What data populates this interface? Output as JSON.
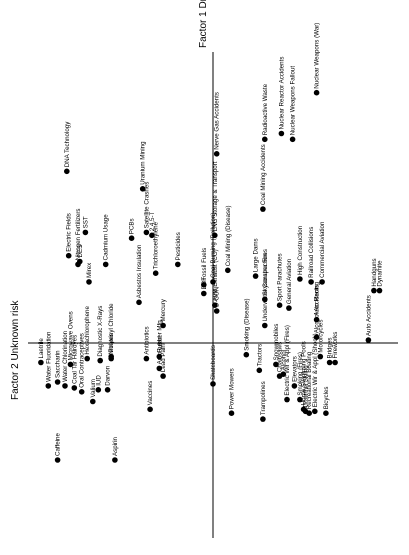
{
  "chart_data": {
    "type": "scatter",
    "xlabel": "Factor 1 Dread risk",
    "ylabel": "Factor 2 Unknown risk",
    "xlim": [
      -1,
      1
    ],
    "ylim": [
      -1,
      1
    ],
    "grid": false,
    "colors": {
      "points": "#000000",
      "axes": "#000000"
    },
    "points": [
      {
        "label": "Nuclear Weapons (War)",
        "x": 0.56,
        "y": 0.86
      },
      {
        "label": "Nuclear Reactor Accidents",
        "x": 0.37,
        "y": 0.72
      },
      {
        "label": "Nuclear Weapons Fallout",
        "x": 0.43,
        "y": 0.7
      },
      {
        "label": "Radioactive Waste",
        "x": 0.28,
        "y": 0.7
      },
      {
        "label": "Nerve Gas Accidents",
        "x": 0.02,
        "y": 0.65
      },
      {
        "label": "DNA Technology",
        "x": -0.79,
        "y": 0.59
      },
      {
        "label": "Uranium Mining",
        "x": -0.38,
        "y": 0.53
      },
      {
        "label": "Coal Mining Accidents",
        "x": 0.27,
        "y": 0.46
      },
      {
        "label": "Satellite Crashes",
        "x": -0.36,
        "y": 0.38
      },
      {
        "label": "SST",
        "x": -0.69,
        "y": 0.38
      },
      {
        "label": "2,4,5-T",
        "x": -0.33,
        "y": 0.37
      },
      {
        "label": "LNG Storage & Transport",
        "x": 0.01,
        "y": 0.37
      },
      {
        "label": "PCBs",
        "x": -0.44,
        "y": 0.36
      },
      {
        "label": "Electric Fields",
        "x": -0.78,
        "y": 0.3
      },
      {
        "label": "DES",
        "x": -0.72,
        "y": 0.28
      },
      {
        "label": "Nitrogen Fertilizers",
        "x": -0.73,
        "y": 0.27
      },
      {
        "label": "Pesticides",
        "x": -0.19,
        "y": 0.27
      },
      {
        "label": "Cadmium Usage",
        "x": -0.58,
        "y": 0.27
      },
      {
        "label": "Trichloroethylene",
        "x": -0.31,
        "y": 0.24
      },
      {
        "label": "Coal Mining (Disease)",
        "x": 0.08,
        "y": 0.25
      },
      {
        "label": "Large Dams",
        "x": 0.23,
        "y": 0.23
      },
      {
        "label": "High Construction",
        "x": 0.47,
        "y": 0.22
      },
      {
        "label": "Handguns",
        "x": 0.87,
        "y": 0.18
      },
      {
        "label": "Dynamite",
        "x": 0.9,
        "y": 0.18
      },
      {
        "label": "Mirex",
        "x": -0.67,
        "y": 0.21
      },
      {
        "label": "Fossil Fuels",
        "x": -0.05,
        "y": 0.2
      },
      {
        "label": "Coal Burning (Pollution)",
        "x": 0.0,
        "y": 0.21
      },
      {
        "label": "Railroad Collisions",
        "x": 0.53,
        "y": 0.21
      },
      {
        "label": "Commercial Aviation",
        "x": 0.59,
        "y": 0.21
      },
      {
        "label": "DDT",
        "x": -0.05,
        "y": 0.17
      },
      {
        "label": "Skyscraper Fires",
        "x": 0.28,
        "y": 0.15
      },
      {
        "label": "Asbestos Insulation",
        "x": -0.4,
        "y": 0.14
      },
      {
        "label": "Auto Exhaust (CO)",
        "x": 0.01,
        "y": 0.13
      },
      {
        "label": "Sport Parachutes",
        "x": 0.36,
        "y": 0.13
      },
      {
        "label": "General Aviation",
        "x": 0.41,
        "y": 0.12
      },
      {
        "label": "Auto Racing",
        "x": 0.56,
        "y": 0.08
      },
      {
        "label": "D-CON",
        "x": 0.02,
        "y": 0.11
      },
      {
        "label": "Mercury",
        "x": -0.27,
        "y": 0.06
      },
      {
        "label": "Underwater Construction",
        "x": 0.28,
        "y": 0.06
      },
      {
        "label": "Alcohol Accidents",
        "x": 0.56,
        "y": 0.02
      },
      {
        "label": "Auto Accidents",
        "x": 0.84,
        "y": 0.01
      },
      {
        "label": "Nitrates",
        "x": -0.55,
        "y": -0.08
      },
      {
        "label": "Hexachlorophene",
        "x": -0.68,
        "y": -0.08
      },
      {
        "label": "Polyvinyl Chloride",
        "x": -0.55,
        "y": -0.07
      },
      {
        "label": "Diagnostic X-Rays",
        "x": -0.61,
        "y": -0.09
      },
      {
        "label": "Antibiotics",
        "x": -0.36,
        "y": -0.08
      },
      {
        "label": "Rubber Mfg.",
        "x": -0.29,
        "y": -0.07
      },
      {
        "label": "Auto Lead",
        "x": -0.29,
        "y": -0.13
      },
      {
        "label": "Lead Paint",
        "x": -0.27,
        "y": -0.17
      },
      {
        "label": "Laetrile",
        "x": -0.93,
        "y": -0.1
      },
      {
        "label": "Microwave Ovens",
        "x": -0.77,
        "y": -0.11
      },
      {
        "label": "Saccharin",
        "x": -0.84,
        "y": -0.2
      },
      {
        "label": "Water Fluoridation",
        "x": -0.89,
        "y": -0.22
      },
      {
        "label": "Water Chlorination",
        "x": -0.8,
        "y": -0.22
      },
      {
        "label": "Coal Tar Hairdyes",
        "x": -0.75,
        "y": -0.23
      },
      {
        "label": "Oral Contraceptives",
        "x": -0.71,
        "y": -0.25
      },
      {
        "label": "IUD",
        "x": -0.62,
        "y": -0.24
      },
      {
        "label": "Darvon",
        "x": -0.57,
        "y": -0.24
      },
      {
        "label": "Valium",
        "x": -0.65,
        "y": -0.3
      },
      {
        "label": "Vaccines",
        "x": -0.34,
        "y": -0.34
      },
      {
        "label": "Caffeine",
        "x": -0.84,
        "y": -0.6
      },
      {
        "label": "Aspirin",
        "x": -0.53,
        "y": -0.6
      },
      {
        "label": "Smoking (Disease)",
        "x": 0.18,
        "y": -0.06
      },
      {
        "label": "Snowmobiles",
        "x": 0.34,
        "y": -0.11
      },
      {
        "label": "Tractors",
        "x": 0.25,
        "y": -0.14
      },
      {
        "label": "Alcohol",
        "x": 0.38,
        "y": -0.16
      },
      {
        "label": "Chainsaws",
        "x": 0.36,
        "y": -0.17
      },
      {
        "label": "Elevators",
        "x": 0.44,
        "y": -0.22
      },
      {
        "label": "Skateboards",
        "x": 0.0,
        "y": -0.21
      },
      {
        "label": "Electric Wir & Appl (Fires)",
        "x": 0.4,
        "y": -0.29
      },
      {
        "label": "Smoking (Fires)",
        "x": 0.47,
        "y": -0.29
      },
      {
        "label": "Motorcycles",
        "x": 0.58,
        "y": -0.07
      },
      {
        "label": "Bridges",
        "x": 0.63,
        "y": -0.1
      },
      {
        "label": "Fireworks",
        "x": 0.66,
        "y": -0.1
      },
      {
        "label": "Power Mowers",
        "x": 0.1,
        "y": -0.36
      },
      {
        "label": "Trampolines",
        "x": 0.27,
        "y": -0.39
      },
      {
        "label": "Home Swimming Pools",
        "x": 0.49,
        "y": -0.34
      },
      {
        "label": "Downhill Skiing",
        "x": 0.5,
        "y": -0.35
      },
      {
        "label": "Recreational Boating",
        "x": 0.52,
        "y": -0.36
      },
      {
        "label": "Electric Wir & Appl (Shock)",
        "x": 0.55,
        "y": -0.35
      },
      {
        "label": "Bicycles",
        "x": 0.61,
        "y": -0.36
      }
    ]
  }
}
